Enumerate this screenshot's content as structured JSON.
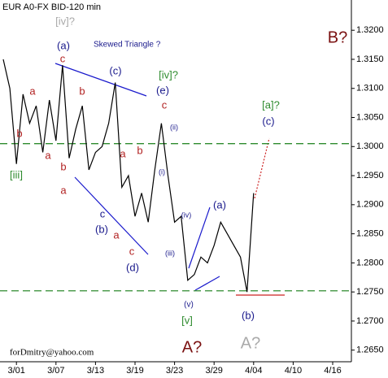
{
  "chart_data": {
    "type": "line",
    "title": "EUR A0-FX BID-120 min",
    "footer": "forDmitry@yahoo.com",
    "categories": [
      null,
      null,
      "3/01",
      null,
      null,
      null,
      null,
      null,
      "3/07",
      null,
      null,
      null,
      null,
      null,
      "3/13",
      null,
      null,
      null,
      null,
      null,
      "3/19",
      null,
      null,
      null,
      null,
      null,
      "3/23",
      null,
      null,
      null,
      null,
      null,
      "3/29",
      null,
      null,
      null,
      null,
      null,
      "4/04",
      null,
      null,
      null,
      null,
      null,
      "4/10",
      null,
      null,
      null,
      null,
      null,
      "4/16",
      null,
      null,
      null
    ],
    "values": [
      1.315,
      1.31,
      1.297,
      1.309,
      1.304,
      1.307,
      1.299,
      1.308,
      1.301,
      1.314,
      1.298,
      1.303,
      1.307,
      1.296,
      1.299,
      1.3,
      1.304,
      1.311,
      1.293,
      1.295,
      1.288,
      1.292,
      1.287,
      1.296,
      1.304,
      1.295,
      1.287,
      1.288,
      1.277,
      1.278,
      1.281,
      1.28,
      1.283,
      1.287,
      1.285,
      1.283,
      1.281,
      1.275,
      1.292,
      null,
      null,
      null,
      null,
      null,
      null,
      null,
      null,
      null,
      null,
      null,
      null,
      null,
      null,
      null
    ],
    "color": "#000000",
    "ylim": [
      1.263,
      1.3252
    ],
    "yticks": [
      {
        "value": 1.265,
        "label": "1.2650"
      },
      {
        "value": 1.27,
        "label": "1.2700"
      },
      {
        "value": 1.275,
        "label": "1.2750"
      },
      {
        "value": 1.28,
        "label": "1.2800"
      },
      {
        "value": 1.285,
        "label": "1.2850"
      },
      {
        "value": 1.29,
        "label": "1.2900"
      },
      {
        "value": 1.295,
        "label": "1.2950"
      },
      {
        "value": 1.3,
        "label": "1.3000"
      },
      {
        "value": 1.305,
        "label": "1.3050"
      },
      {
        "value": 1.31,
        "label": "1.3100"
      },
      {
        "value": 1.315,
        "label": "1.3150"
      },
      {
        "value": 1.32,
        "label": "1.3200"
      }
    ],
    "levels": [
      1.3005,
      1.2752
    ],
    "level_color": "#2e8b2e",
    "annotations": [
      "[iv]?",
      "(a)",
      "c",
      "(c)",
      "Skewed Triangle ?",
      "[iv]?",
      "(e)",
      "c",
      "(ii)",
      "a",
      "b",
      "b",
      "a",
      "[iii]",
      "b",
      "a",
      "(i)",
      "c",
      "(b)",
      "a",
      "c",
      "(d)",
      "(iv)",
      "(a)",
      "(iii)",
      "(v)",
      "[v]",
      "A?",
      "A?",
      "(b)",
      "[a]?",
      "(c)",
      "B?",
      "a",
      "b"
    ]
  }
}
